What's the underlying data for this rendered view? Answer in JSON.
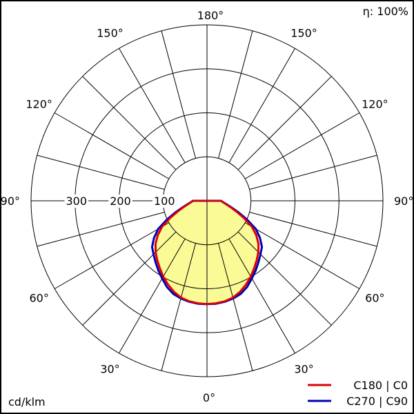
{
  "chart_data": {
    "type": "polar",
    "efficiency_label": "η: 100%",
    "unit_label": "cd/klm",
    "radial_ticks": [
      100,
      200,
      300
    ],
    "radial_tick_labels": [
      "100",
      "200",
      "300"
    ],
    "rmax": 400,
    "angle_labels": [
      {
        "text": "180°",
        "angle": 180,
        "side": "top"
      },
      {
        "text": "150°",
        "angle": 150,
        "side": "left"
      },
      {
        "text": "150°",
        "angle": 150,
        "side": "right"
      },
      {
        "text": "120°",
        "angle": 120,
        "side": "left"
      },
      {
        "text": "120°",
        "angle": 120,
        "side": "right"
      },
      {
        "text": "90°",
        "angle": 90,
        "side": "left"
      },
      {
        "text": "90°",
        "angle": 90,
        "side": "right"
      },
      {
        "text": "60°",
        "angle": 60,
        "side": "left"
      },
      {
        "text": "60°",
        "angle": 60,
        "side": "right"
      },
      {
        "text": "30°",
        "angle": 30,
        "side": "left"
      },
      {
        "text": "30°",
        "angle": 30,
        "side": "right"
      },
      {
        "text": "0°",
        "angle": 0,
        "side": "bottom"
      }
    ],
    "fill_color": "#fafa96",
    "series": [
      {
        "name": "C180 | C0",
        "color": "#e00000",
        "gamma": [
          0,
          5,
          10,
          15,
          20,
          25,
          30,
          35,
          40,
          45,
          50,
          55,
          60,
          65,
          70,
          75,
          80,
          85,
          90
        ],
        "values": [
          235,
          234,
          232,
          228,
          220,
          210,
          199,
          187,
          176,
          165,
          153,
          137,
          118,
          93,
          71,
          55,
          44,
          37,
          32
        ]
      },
      {
        "name": "C270 | C90",
        "color": "#0000b8",
        "gamma": [
          0,
          5,
          10,
          15,
          20,
          25,
          30,
          35,
          40,
          45,
          50,
          55,
          60,
          65,
          70,
          75,
          80,
          85,
          90
        ],
        "values": [
          235,
          235,
          233,
          230,
          225,
          216,
          204,
          193,
          182,
          172,
          163,
          147,
          128,
          100,
          76,
          57,
          45,
          37,
          32
        ]
      }
    ]
  }
}
